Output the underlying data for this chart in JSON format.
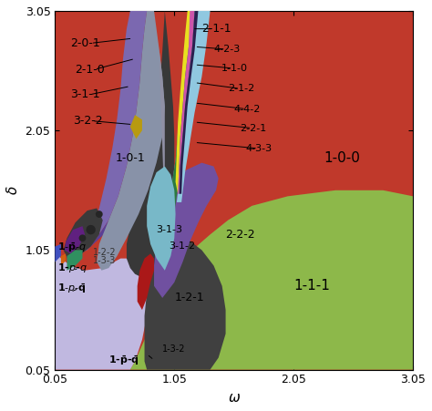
{
  "xlim": [
    0.05,
    3.05
  ],
  "ylim": [
    0.05,
    3.05
  ],
  "xlabel": "ω",
  "ylabel": "δ",
  "xticks": [
    0.05,
    1.05,
    2.05,
    3.05
  ],
  "yticks": [
    0.05,
    1.05,
    2.05,
    3.05
  ],
  "bg_color": "#c0392b",
  "regions": {
    "green_111": {
      "color": "#8db84a",
      "zorder": 2
    },
    "lightpurple_bottom": {
      "color": "#b8b0d8",
      "zorder": 2
    },
    "olive_green": {
      "color": "#7aa840",
      "zorder": 3
    },
    "purple_101": {
      "color": "#5c3d8f",
      "zorder": 4
    },
    "gray_201": {
      "color": "#8090a8",
      "zorder": 4
    },
    "dark_blob": {
      "color": "#3a3a3a",
      "zorder": 5
    },
    "green_211": {
      "color": "#2d7a40",
      "zorder": 5
    },
    "teal_strip": {
      "color": "#5b9aa0",
      "zorder": 6
    },
    "pink_strip": {
      "color": "#cc66aa",
      "zorder": 7
    },
    "lightblue": {
      "color": "#90c8e0",
      "zorder": 6
    },
    "yellow": {
      "color": "#e8e020",
      "zorder": 7
    },
    "dark_narrow": {
      "color": "#2a2a5a",
      "zorder": 8
    },
    "red_blob": {
      "color": "#aa2020",
      "zorder": 5
    },
    "purple_blob": {
      "color": "#7050a0",
      "zorder": 5
    },
    "dark_lower": {
      "color": "#404040",
      "zorder": 4
    },
    "gold_blob": {
      "color": "#c8a000",
      "zorder": 6
    },
    "cyan_blob": {
      "color": "#50b0c0",
      "zorder": 5
    },
    "green_small": {
      "color": "#309060",
      "zorder": 6
    },
    "orange_small": {
      "color": "#d06010",
      "zorder": 7
    },
    "purple_small": {
      "color": "#804090",
      "zorder": 6
    }
  }
}
